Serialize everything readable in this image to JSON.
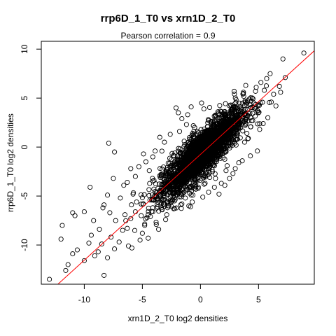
{
  "chart_data": {
    "type": "scatter",
    "title": "rrp6D_1_T0 vs xrn1D_2_T0",
    "subtitle_label": "Pearson correlation =",
    "subtitle_value": "0.9",
    "xlabel": "xrn1D_2_T0 log2 densities",
    "ylabel": "rrp6D_1_T0 log2 densities",
    "xlim": [
      -13.7,
      9.8
    ],
    "ylim": [
      -14.0,
      10.8
    ],
    "xticks": [
      -10,
      -5,
      0,
      5
    ],
    "yticks": [
      -10,
      -5,
      0,
      5,
      10
    ],
    "xtick_labels": [
      "-10",
      "-5",
      "0",
      "5"
    ],
    "ytick_labels": [
      "-10",
      "-5",
      "0",
      "5",
      "10"
    ],
    "grid": false,
    "marker": "open-circle",
    "marker_color": "#000000",
    "fit_line": {
      "intercept": -0.75,
      "slope": 1.08,
      "color": "#ff0000"
    },
    "points": [
      [
        8.9,
        9.6
      ],
      [
        7.1,
        9.0
      ],
      [
        6.8,
        6.2
      ],
      [
        5.2,
        6.6
      ],
      [
        5.5,
        5.8
      ],
      [
        6.3,
        5.4
      ],
      [
        4.8,
        6.1
      ],
      [
        6.5,
        4.2
      ],
      [
        5.0,
        3.5
      ],
      [
        5.4,
        2.4
      ],
      [
        5.1,
        1.8
      ],
      [
        4.2,
        4.9
      ],
      [
        3.7,
        5.6
      ],
      [
        4.9,
        -0.4
      ],
      [
        3.8,
        0.5
      ],
      [
        4.3,
        -0.9
      ],
      [
        3.6,
        -1.4
      ],
      [
        2.8,
        -2.7
      ],
      [
        3.3,
        -1.6
      ],
      [
        2.3,
        -1.9
      ],
      [
        2.1,
        -3.9
      ],
      [
        1.8,
        -3.7
      ],
      [
        0.8,
        -3.1
      ],
      [
        1.3,
        -3.2
      ],
      [
        1.2,
        -4.1
      ],
      [
        0.4,
        -3.7
      ],
      [
        -0.4,
        -4.3
      ],
      [
        -0.8,
        -4.9
      ],
      [
        -0.7,
        -5.6
      ],
      [
        -1.3,
        -5.2
      ],
      [
        -2.0,
        -4.6
      ],
      [
        -2.4,
        -4.4
      ],
      [
        -2.7,
        -5.7
      ],
      [
        -3.2,
        -4.7
      ],
      [
        -3.3,
        -6.4
      ],
      [
        -3.0,
        -7.4
      ],
      [
        -3.7,
        -6.1
      ],
      [
        -4.1,
        -6.6
      ],
      [
        -4.6,
        -7.2
      ],
      [
        -4.8,
        -8.0
      ],
      [
        -5.1,
        -7.0
      ],
      [
        -5.6,
        -6.6
      ],
      [
        -6.0,
        -7.3
      ],
      [
        -6.5,
        -6.9
      ],
      [
        -6.3,
        -8.3
      ],
      [
        -5.2,
        -9.5
      ],
      [
        -5.9,
        -10.3
      ],
      [
        -6.7,
        -8.5
      ],
      [
        -7.0,
        -9.7
      ],
      [
        -7.4,
        -10.4
      ],
      [
        -8.0,
        -11.3
      ],
      [
        -8.3,
        -13.1
      ],
      [
        -8.8,
        -10.7
      ],
      [
        -9.1,
        -11.1
      ],
      [
        -9.6,
        -9.8
      ],
      [
        -10.0,
        -11.6
      ],
      [
        -10.6,
        -10.5
      ],
      [
        -11.0,
        -10.9
      ],
      [
        -11.4,
        -12.0
      ],
      [
        -11.6,
        -12.6
      ],
      [
        -12.0,
        -9.4
      ],
      [
        -11.9,
        -8.0
      ],
      [
        -13.0,
        -13.5
      ],
      [
        -11.0,
        -6.7
      ],
      [
        -10.8,
        -7.0
      ],
      [
        -10.0,
        -6.6
      ],
      [
        -9.5,
        -4.1
      ],
      [
        -8.0,
        -4.9
      ],
      [
        -8.3,
        -5.9
      ],
      [
        -7.8,
        -6.7
      ],
      [
        -7.3,
        -7.5
      ],
      [
        -7.9,
        0.4
      ],
      [
        -7.4,
        -0.5
      ],
      [
        -5.6,
        -3.0
      ],
      [
        -4.4,
        -2.4
      ],
      [
        -5.3,
        -2.0
      ],
      [
        -4.7,
        -1.5
      ],
      [
        -4.9,
        -0.7
      ],
      [
        -4.1,
        -1.0
      ],
      [
        -3.9,
        -0.4
      ],
      [
        -3.1,
        0.5
      ],
      [
        -3.5,
        1.0
      ],
      [
        -2.6,
        1.3
      ],
      [
        -1.8,
        1.6
      ],
      [
        -1.2,
        2.3
      ],
      [
        -0.6,
        1.1
      ],
      [
        -1.9,
        3.5
      ],
      [
        -1.1,
        3.3
      ],
      [
        -0.8,
        4.1
      ],
      [
        0.1,
        4.5
      ],
      [
        -2.1,
        4.0
      ],
      [
        0.3,
        3.9
      ],
      [
        -1.6,
        2.9
      ],
      [
        -6.0,
        -2.2
      ],
      [
        -6.3,
        -3.6
      ],
      [
        -5.8,
        -4.8
      ],
      [
        -6.9,
        -5.2
      ],
      [
        -6.6,
        -3.9
      ],
      [
        -7.5,
        -3.2
      ],
      [
        -8.4,
        -6.2
      ],
      [
        -9.2,
        -7.5
      ],
      [
        -8.7,
        -8.4
      ],
      [
        -9.4,
        -9.0
      ],
      [
        -8.5,
        -9.9
      ],
      [
        -7.7,
        -9.2
      ],
      [
        -6.2,
        -10.1
      ],
      [
        -5.0,
        -8.8
      ],
      [
        -4.5,
        -9.3
      ],
      [
        -5.5,
        -5.6
      ],
      [
        -4.2,
        -5.4
      ],
      [
        -3.8,
        -7.9
      ],
      [
        -2.9,
        -6.9
      ],
      [
        -2.3,
        -6.3
      ],
      [
        -1.6,
        -5.8
      ],
      [
        -1.0,
        -6.0
      ],
      [
        0.2,
        -5.1
      ],
      [
        0.7,
        -4.6
      ],
      [
        1.6,
        -4.8
      ],
      [
        2.5,
        -3.2
      ],
      [
        3.0,
        -2.2
      ],
      [
        2.2,
        -2.4
      ],
      [
        1.0,
        -2.3
      ],
      [
        -0.2,
        -2.7
      ],
      [
        4.5,
        2.7
      ],
      [
        4.0,
        1.4
      ],
      [
        5.8,
        3.0
      ],
      [
        6.1,
        4.6
      ],
      [
        6.9,
        5.6
      ],
      [
        7.3,
        7.1
      ],
      [
        6.0,
        7.5
      ],
      [
        5.7,
        7.0
      ],
      [
        4.6,
        4.5
      ],
      [
        3.5,
        3.4
      ],
      [
        2.7,
        4.2
      ],
      [
        1.5,
        3.6
      ],
      [
        2.9,
        5.7
      ],
      [
        3.9,
        6.3
      ],
      [
        -3.6,
        -8.4
      ],
      [
        -2.8,
        -5.6
      ],
      [
        -4.0,
        -3.4
      ],
      [
        -2.5,
        -3.0
      ],
      [
        -3.4,
        -2.8
      ],
      [
        -1.5,
        -1.5
      ],
      [
        -2.2,
        -0.6
      ],
      [
        -1.4,
        0.6
      ],
      [
        -0.3,
        -0.3
      ],
      [
        0.5,
        0.6
      ],
      [
        1.2,
        1.3
      ],
      [
        2.0,
        2.0
      ],
      [
        2.6,
        2.5
      ],
      [
        3.2,
        2.9
      ],
      [
        0.9,
        2.6
      ],
      [
        1.7,
        0.7
      ],
      [
        2.4,
        0.1
      ],
      [
        0.0,
        -1.2
      ],
      [
        -0.9,
        -2.0
      ],
      [
        -1.7,
        -3.0
      ],
      [
        -2.0,
        -3.8
      ],
      [
        1.4,
        -1.2
      ],
      [
        0.6,
        -1.9
      ],
      [
        -0.5,
        2.0
      ]
    ]
  }
}
